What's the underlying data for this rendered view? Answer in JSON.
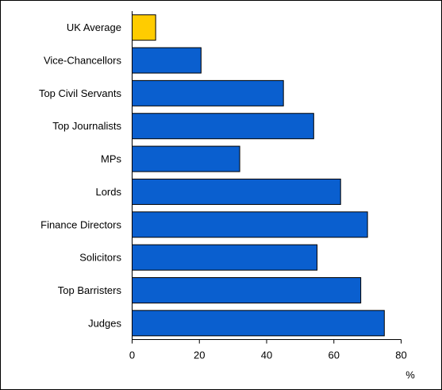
{
  "chart_data": {
    "type": "bar",
    "orientation": "horizontal",
    "categories": [
      "UK Average",
      "Vice-Chancellors",
      "Top Civil Servants",
      "Top Journalists",
      "MPs",
      "Lords",
      "Finance Directors",
      "Solicitors",
      "Top Barristers",
      "Judges"
    ],
    "values": [
      7,
      20.5,
      45,
      54,
      32,
      62,
      70,
      55,
      68,
      75
    ],
    "bar_colors": [
      "#FFCC00",
      "#0A5FCF",
      "#0A5FCF",
      "#0A5FCF",
      "#0A5FCF",
      "#0A5FCF",
      "#0A5FCF",
      "#0A5FCF",
      "#0A5FCF",
      "#0A5FCF"
    ],
    "xlim": [
      0,
      80
    ],
    "xticks": [
      0,
      20,
      40,
      60,
      80
    ],
    "xlabel": "%",
    "grid": false,
    "legend": "none"
  }
}
